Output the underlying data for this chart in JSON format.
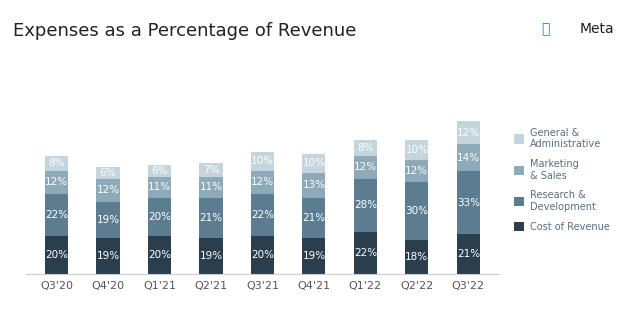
{
  "title": "Expenses as a Percentage of Revenue",
  "categories": [
    "Q3'20",
    "Q4'20",
    "Q1'21",
    "Q2'21",
    "Q3'21",
    "Q4'21",
    "Q1'22",
    "Q2'22",
    "Q3'22"
  ],
  "segments": {
    "Cost of Revenue": [
      20,
      19,
      20,
      19,
      20,
      19,
      22,
      18,
      21
    ],
    "Research & Development": [
      22,
      19,
      20,
      21,
      22,
      21,
      28,
      30,
      33
    ],
    "Marketing & Sales": [
      12,
      12,
      11,
      11,
      12,
      13,
      12,
      12,
      14
    ],
    "General & Administrative": [
      8,
      6,
      6,
      7,
      10,
      10,
      8,
      10,
      12
    ]
  },
  "colors": {
    "Cost of Revenue": "#2b3e4e",
    "Research & Development": "#5c7d91",
    "Marketing & Sales": "#8daab8",
    "General & Administrative": "#c5d5dd"
  },
  "legend_labels": [
    "General &\nAdministrative",
    "Marketing\n& Sales",
    "Research &\nDevelopment",
    "Cost of Revenue"
  ],
  "legend_colors": [
    "#c5d5dd",
    "#8daab8",
    "#5c7d91",
    "#2b3e4e"
  ],
  "label_color": "#ffffff",
  "background_color": "#ffffff",
  "legend_text_color": "#5a6e7e",
  "title_color": "#222222",
  "tick_color": "#555555",
  "meta_text_color": "#1c1e21",
  "meta_logo_color": "#0081fb",
  "title_fontsize": 13,
  "tick_fontsize": 8,
  "label_fontsize": 7.5,
  "legend_fontsize": 7,
  "bar_width": 0.45,
  "ylim": [
    0,
    110
  ]
}
